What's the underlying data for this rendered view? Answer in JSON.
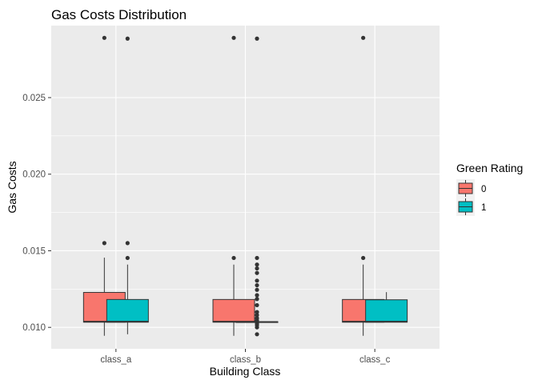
{
  "chart_data": {
    "type": "boxplot",
    "title": "Gas Costs Distribution",
    "xlabel": "Building Class",
    "ylabel": "Gas Costs",
    "categories": [
      "class_a",
      "class_b",
      "class_c"
    ],
    "ylim": [
      0.0086,
      0.0297
    ],
    "yticks": [
      0.01,
      0.015,
      0.02,
      0.025
    ],
    "ytick_labels": [
      "0.010",
      "0.015",
      "0.020",
      "0.025"
    ],
    "grid": true,
    "legend": {
      "title": "Green Rating",
      "position": "right",
      "entries": [
        {
          "label": "0",
          "color": "#F8766D"
        },
        {
          "label": "1",
          "color": "#00BFC4"
        }
      ]
    },
    "series": [
      {
        "name": "0",
        "color": "#F8766D",
        "boxes": [
          {
            "category": "class_a",
            "lower_whisker": 0.00945,
            "q1": 0.01034,
            "median": 0.01037,
            "q3": 0.01228,
            "upper_whisker": 0.01455,
            "outliers": [
              0.0155,
              0.0289
            ]
          },
          {
            "category": "class_b",
            "lower_whisker": 0.00945,
            "q1": 0.01034,
            "median": 0.01037,
            "q3": 0.01182,
            "upper_whisker": 0.0141,
            "outliers": [
              0.01453,
              0.0289
            ]
          },
          {
            "category": "class_c",
            "lower_whisker": 0.00945,
            "q1": 0.01034,
            "median": 0.01037,
            "q3": 0.01182,
            "upper_whisker": 0.0141,
            "outliers": [
              0.01453,
              0.0289
            ]
          }
        ]
      },
      {
        "name": "1",
        "color": "#00BFC4",
        "boxes": [
          {
            "category": "class_a",
            "lower_whisker": 0.00955,
            "q1": 0.01034,
            "median": 0.01037,
            "q3": 0.01182,
            "upper_whisker": 0.0141,
            "outliers": [
              0.01453,
              0.0155,
              0.02885
            ]
          },
          {
            "category": "class_b",
            "lower_whisker": 0.01031,
            "q1": 0.01033,
            "median": 0.01035,
            "q3": 0.01037,
            "upper_whisker": 0.0104,
            "outliers": [
              0.00955,
              0.01,
              0.01015,
              0.01025,
              0.01045,
              0.0106,
              0.0108,
              0.011,
              0.01145,
              0.01185,
              0.0121,
              0.01245,
              0.01275,
              0.01305,
              0.01355,
              0.01385,
              0.0141,
              0.01453,
              0.02885
            ]
          },
          {
            "category": "class_c",
            "lower_whisker": 0.01034,
            "q1": 0.01034,
            "median": 0.01037,
            "q3": 0.0118,
            "upper_whisker": 0.0123,
            "outliers": []
          }
        ]
      }
    ]
  }
}
